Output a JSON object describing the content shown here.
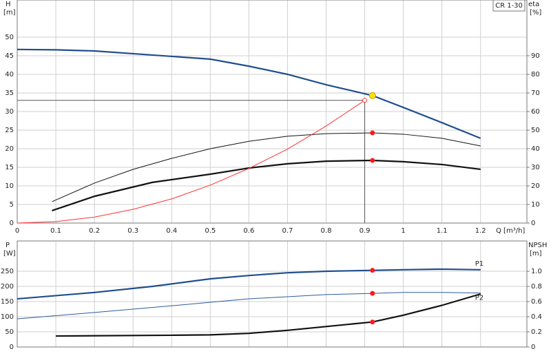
{
  "chart_data": [
    {
      "type": "line",
      "title": "CR 1-30",
      "ylabel": "H",
      "yunit": "[m]",
      "y2label": "eta",
      "y2unit": "[%]",
      "xlabel": "Q [m³/h]",
      "xlim": [
        0,
        1.32
      ],
      "xticks": [
        0,
        0.1,
        0.2,
        0.3,
        0.4,
        0.5,
        0.6,
        0.7,
        0.8,
        0.9,
        1,
        1.1,
        1.2
      ],
      "xtick_labels": true,
      "ylim": [
        0,
        60
      ],
      "yticks": [
        0,
        5,
        10,
        15,
        20,
        25,
        30,
        35,
        40,
        45,
        50
      ],
      "y2lim": [
        0,
        120
      ],
      "y2ticks": [
        0,
        10,
        20,
        30,
        40,
        50,
        60,
        70,
        80,
        90
      ],
      "grid": true,
      "series": [
        {
          "color": "#1f4e8c",
          "style": "thick",
          "axis": "y",
          "x": [
            0,
            0.1,
            0.2,
            0.35,
            0.5,
            0.6,
            0.7,
            0.8,
            0.92,
            1.0,
            1.1,
            1.2
          ],
          "values": [
            46.7,
            46.6,
            46.3,
            45.2,
            44.1,
            42.2,
            40,
            37.2,
            34.3,
            31.1,
            27,
            22.8
          ]
        },
        {
          "color": "#111111",
          "style": "thin",
          "axis": "y2",
          "x": [
            0.09,
            0.2,
            0.3,
            0.4,
            0.5,
            0.6,
            0.7,
            0.8,
            0.92,
            1.0,
            1.1,
            1.2
          ],
          "values": [
            11.5,
            21.5,
            28.9,
            34.8,
            40,
            44,
            46.7,
            48.1,
            48.5,
            47.8,
            45.6,
            41.5
          ]
        },
        {
          "color": "#111111",
          "style": "thick",
          "axis": "y2",
          "x": [
            0.09,
            0.2,
            0.35,
            0.5,
            0.6,
            0.7,
            0.8,
            0.92,
            1.0,
            1.1,
            1.2
          ],
          "values": [
            6.7,
            14.4,
            21.9,
            26.3,
            29.6,
            31.9,
            33.3,
            33.7,
            33,
            31.5,
            28.9
          ]
        },
        {
          "color": "#ff3030",
          "style": "thin",
          "axis": "y",
          "x": [
            0,
            0.1,
            0.2,
            0.3,
            0.4,
            0.5,
            0.6,
            0.7,
            0.8,
            0.9
          ],
          "values": [
            0,
            0.4,
            1.6,
            3.7,
            6.5,
            10.2,
            14.7,
            19.9,
            26.1,
            33
          ]
        }
      ],
      "duty_point": {
        "x": 0.9,
        "y": 33
      },
      "points": [
        {
          "x": 0.92,
          "y": 34.3,
          "axis": "y",
          "color": "#ffe000"
        },
        {
          "x": 0.92,
          "y": 48.5,
          "axis": "y2",
          "color": "#ff1a1a"
        },
        {
          "x": 0.92,
          "y": 33.7,
          "axis": "y2",
          "color": "#ff1a1a"
        }
      ]
    },
    {
      "type": "line",
      "ylabel": "P",
      "yunit": "[W]",
      "y2label": "NPSH",
      "y2unit": "[m]",
      "xlim": [
        0,
        1.32
      ],
      "xticks": [
        0,
        0.1,
        0.2,
        0.3,
        0.4,
        0.5,
        0.6,
        0.7,
        0.8,
        0.9,
        1,
        1.1,
        1.2
      ],
      "xtick_labels": false,
      "ylim": [
        0,
        350
      ],
      "yticks": [
        0,
        50,
        100,
        150,
        200,
        250
      ],
      "y2lim": [
        0,
        1.4
      ],
      "y2ticks": [
        0,
        0.2,
        0.4,
        0.6,
        0.8,
        {
          "value": 1,
          "label": "1.0"
        }
      ],
      "grid": true,
      "series": [
        {
          "name": "P1",
          "color": "#1f4e8c",
          "style": "thick",
          "axis": "y",
          "x": [
            0,
            0.2,
            0.35,
            0.5,
            0.6,
            0.7,
            0.8,
            0.92,
            1.0,
            1.1,
            1.2
          ],
          "values": [
            159,
            180,
            200,
            225,
            236,
            245,
            250,
            253,
            255,
            257,
            255
          ]
        },
        {
          "name": "P2",
          "color": "#2a5a9a",
          "style": "thin",
          "axis": "y",
          "x": [
            0,
            0.2,
            0.4,
            0.6,
            0.8,
            0.92,
            1.0,
            1.1,
            1.2
          ],
          "values": [
            93,
            114,
            136,
            159,
            173,
            177,
            180,
            180,
            178
          ]
        },
        {
          "color": "#111111",
          "style": "thick",
          "axis": "y2",
          "x": [
            0.1,
            0.4,
            0.5,
            0.6,
            0.7,
            0.8,
            0.92,
            1.0,
            1.1,
            1.2
          ],
          "values": [
            0.145,
            0.155,
            0.16,
            0.18,
            0.22,
            0.27,
            0.33,
            0.42,
            0.55,
            0.7
          ]
        }
      ],
      "points": [
        {
          "x": 0.92,
          "y": 253,
          "axis": "y",
          "color": "#ff1a1a"
        },
        {
          "x": 0.92,
          "y": 177,
          "axis": "y",
          "color": "#ff1a1a"
        },
        {
          "x": 0.92,
          "y": 0.33,
          "axis": "y2",
          "color": "#ff1a1a"
        }
      ]
    }
  ]
}
